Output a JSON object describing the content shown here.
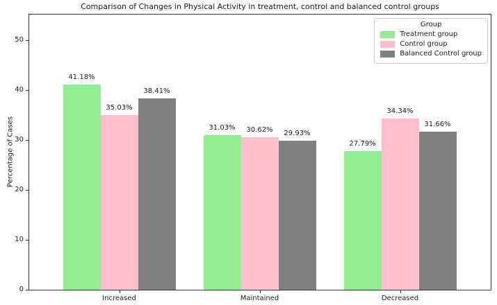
{
  "chart_data": {
    "type": "bar",
    "title": "Comparison of Changes in Physical Activity in treatment, control and balanced control groups",
    "xlabel": "",
    "ylabel": "Percentage of Cases",
    "categories": [
      "Increased",
      "Maintained",
      "Decreased"
    ],
    "series": [
      {
        "name": "Treatment group",
        "color": "#90EE90",
        "values": [
          41.18,
          31.03,
          27.79
        ],
        "labels": [
          "41.18%",
          "31.03%",
          "27.79%"
        ]
      },
      {
        "name": "Control group",
        "color": "#FFC0CB",
        "values": [
          35.03,
          30.62,
          34.34
        ],
        "labels": [
          "35.03%",
          "30.62%",
          "34.34%"
        ]
      },
      {
        "name": "Balanced Control group",
        "color": "#808080",
        "values": [
          38.41,
          29.93,
          31.66
        ],
        "labels": [
          "38.41%",
          "29.93%",
          "31.66%"
        ]
      }
    ],
    "yticks": [
      0,
      10,
      20,
      30,
      40,
      50
    ],
    "ylim": [
      0,
      55.2
    ],
    "grid": false,
    "legend": {
      "title": "Group",
      "position": "upper right"
    }
  }
}
